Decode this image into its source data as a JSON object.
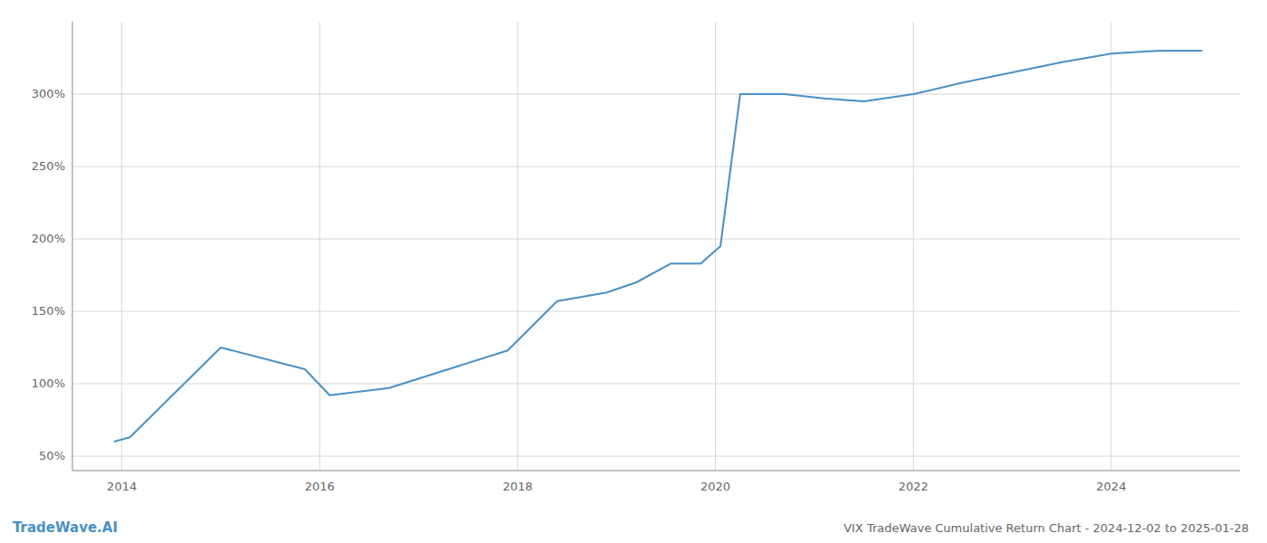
{
  "chart_data": {
    "type": "line",
    "title": "VIX TradeWave Cumulative Return Chart - 2024-12-02 to 2025-01-28",
    "annotations": [
      "TradeWave.AI"
    ],
    "color": "#4a90c4",
    "x": [
      2013.92,
      2014.08,
      2015.0,
      2015.85,
      2016.1,
      2016.7,
      2017.3,
      2017.9,
      2018.4,
      2018.9,
      2019.2,
      2019.55,
      2019.85,
      2020.05,
      2020.25,
      2020.7,
      2021.1,
      2021.5,
      2022.0,
      2022.5,
      2023.0,
      2023.5,
      2024.0,
      2024.5,
      2024.92
    ],
    "values": [
      60,
      63,
      125,
      110,
      92,
      97,
      110,
      123,
      157,
      163,
      170,
      183,
      183,
      195,
      300,
      300,
      297,
      295,
      300,
      308,
      315,
      322,
      328,
      330,
      330
    ],
    "xlim": [
      2013.5,
      2025.3
    ],
    "ylim": [
      40,
      350
    ],
    "xticks": [
      2014,
      2016,
      2018,
      2020,
      2022,
      2024
    ],
    "yticks": [
      {
        "value": 50,
        "label": "50%"
      },
      {
        "value": 100,
        "label": "100%"
      },
      {
        "value": 150,
        "label": "150%"
      },
      {
        "value": 200,
        "label": "200%"
      },
      {
        "value": 250,
        "label": "250%"
      },
      {
        "value": 300,
        "label": "300%"
      }
    ],
    "grid": true
  }
}
